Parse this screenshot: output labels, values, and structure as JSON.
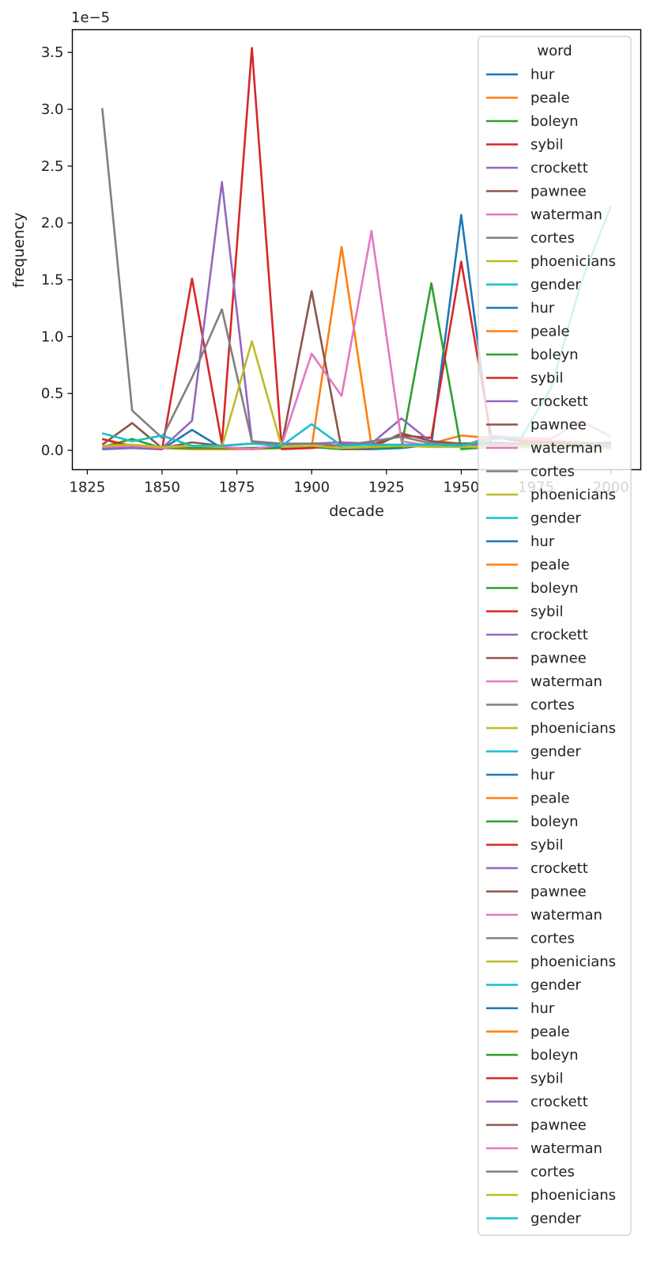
{
  "chart_data": {
    "type": "line",
    "xlabel": "decade",
    "ylabel": "frequency",
    "y_offset_label": "1e−5",
    "legend_title": "word",
    "legend_placement": "top-right",
    "grid": false,
    "xlim": [
      1820,
      2010
    ],
    "ylim": [
      -1.7e-06,
      3.7e-05
    ],
    "x_ticks": [
      1825,
      1850,
      1875,
      1900,
      1925,
      1950,
      1975,
      2000
    ],
    "x_tick_labels": [
      "1825",
      "1850",
      "1875",
      "1900",
      "1925",
      "1950",
      "1975",
      "2000"
    ],
    "y_ticks": [
      0,
      5e-06,
      1e-05,
      1.5e-05,
      2e-05,
      2.5e-05,
      3e-05,
      3.5e-05
    ],
    "y_tick_labels": [
      "0.0",
      "0.5",
      "1.0",
      "1.5",
      "2.0",
      "2.5",
      "3.0",
      "3.5"
    ],
    "x": [
      1830,
      1840,
      1850,
      1860,
      1870,
      1880,
      1890,
      1900,
      1910,
      1920,
      1930,
      1940,
      1950,
      1960,
      1970,
      1980,
      1990,
      2000
    ],
    "series": [
      {
        "name": "hur",
        "color": "#1f77b4",
        "values": [
          1e-07,
          2e-07,
          1e-07,
          1.8e-06,
          2e-07,
          2e-07,
          3e-07,
          3e-07,
          1e-07,
          1e-07,
          2e-07,
          5e-07,
          2.07e-05,
          4e-07,
          3e-07,
          3e-07,
          3e-07,
          3e-07
        ]
      },
      {
        "name": "peale",
        "color": "#ff7f0e",
        "values": [
          1e-06,
          4e-07,
          2e-07,
          1e-07,
          1e-07,
          1e-07,
          2e-07,
          3e-07,
          1.79e-05,
          4e-07,
          3e-07,
          6e-07,
          1.3e-06,
          1.1e-06,
          9e-07,
          8e-07,
          7e-07,
          6e-07
        ]
      },
      {
        "name": "boleyn",
        "color": "#2ca02c",
        "values": [
          3e-07,
          1e-06,
          2e-07,
          2e-07,
          2e-07,
          2e-07,
          2e-07,
          3e-07,
          1e-07,
          2e-07,
          3e-07,
          1.47e-05,
          1e-07,
          3e-07,
          3e-07,
          3e-07,
          2e-07,
          2e-07
        ]
      },
      {
        "name": "sybil",
        "color": "#d62728",
        "values": [
          1e-06,
          3e-07,
          1e-07,
          1.51e-05,
          6e-07,
          3.54e-05,
          1e-07,
          2e-07,
          5e-07,
          5e-07,
          1.3e-06,
          1.1e-06,
          1.66e-05,
          1.2e-06,
          8e-07,
          7e-07,
          6e-07,
          6e-07
        ]
      },
      {
        "name": "crockett",
        "color": "#9467bd",
        "values": [
          2e-07,
          2e-07,
          2e-07,
          2.6e-06,
          2.36e-05,
          8e-07,
          5e-07,
          6e-07,
          7e-07,
          6e-07,
          2.8e-06,
          7e-07,
          5e-07,
          6e-07,
          6e-07,
          6e-07,
          6e-07,
          7e-07
        ]
      },
      {
        "name": "pawnee",
        "color": "#8c564b",
        "values": [
          5e-07,
          2.4e-06,
          2e-07,
          7e-07,
          4e-07,
          6e-07,
          5e-07,
          1.4e-05,
          1e-07,
          2e-07,
          1.5e-06,
          8e-07,
          6e-07,
          7e-07,
          6e-07,
          6e-07,
          6e-07,
          6e-07
        ]
      },
      {
        "name": "waterman",
        "color": "#e377c2",
        "values": [
          3e-07,
          4e-07,
          2e-07,
          4e-07,
          3e-07,
          1e-07,
          5e-07,
          8.5e-06,
          4.8e-06,
          1.93e-05,
          8e-07,
          4e-07,
          3e-07,
          1.3e-06,
          1.1e-06,
          1e-06,
          2.6e-06,
          1.2e-06
        ]
      },
      {
        "name": "cortes",
        "color": "#7f7f7f",
        "values": [
          3.01e-05,
          3.5e-06,
          1.1e-06,
          6.4e-06,
          1.24e-05,
          8e-07,
          6e-07,
          6e-07,
          4e-07,
          8e-07,
          1.2e-06,
          6e-07,
          5e-07,
          5e-07,
          5e-07,
          5e-07,
          5e-07,
          5e-07
        ]
      },
      {
        "name": "phoenicians",
        "color": "#bcbd22",
        "values": [
          4e-07,
          5e-07,
          3e-07,
          4e-07,
          3e-07,
          9.6e-06,
          3e-07,
          4e-07,
          2e-07,
          3e-07,
          4e-07,
          3e-07,
          3e-07,
          3e-07,
          3e-07,
          2e-07,
          2e-07,
          2e-07
        ]
      },
      {
        "name": "gender",
        "color": "#17becf",
        "values": [
          1.5e-06,
          8e-07,
          1.3e-06,
          4e-07,
          4e-07,
          6e-07,
          4e-07,
          2.3e-06,
          4e-07,
          5e-07,
          5e-07,
          5e-07,
          4e-07,
          1e-06,
          1.1e-06,
          5.5e-06,
          1.47e-05,
          2.15e-05
        ]
      }
    ],
    "legend_repeats": 5
  }
}
